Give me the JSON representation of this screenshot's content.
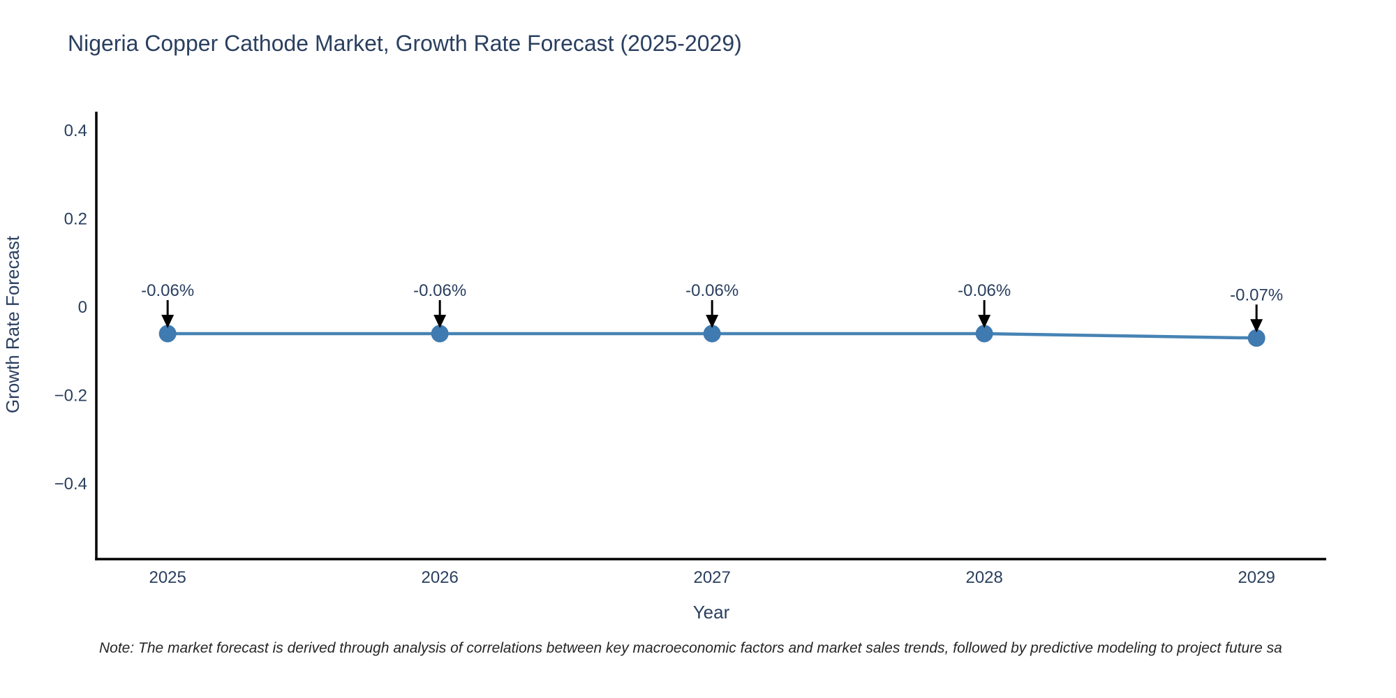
{
  "chart": {
    "title": "Nigeria Copper Cathode Market, Growth Rate Forecast (2025-2029)",
    "note": "Note: The market forecast is derived through analysis of correlations between key macroeconomic factors and market sales trends, followed by predictive modeling to project future sa",
    "colors": {
      "title_text": "#2a3f5f",
      "axis_title_text": "#2a3f5f",
      "tick_text": "#2a3f5f",
      "axis_line": "#000000",
      "series_line": "#4683b4",
      "marker_fill": "#3f7ab0",
      "annotation_text": "#2a3f5f",
      "annotation_arrow": "#000000",
      "note_text": "#262626",
      "background": "#ffffff"
    }
  },
  "chart_data": {
    "type": "line",
    "title": "Nigeria Copper Cathode Market, Growth Rate Forecast (2025-2029)",
    "xlabel": "Year",
    "ylabel": "Growth Rate Forecast",
    "x": [
      2025,
      2026,
      2027,
      2028,
      2029
    ],
    "y": [
      -0.06,
      -0.06,
      -0.06,
      -0.06,
      -0.07
    ],
    "point_labels": [
      "-0.06%",
      "-0.06%",
      "-0.06%",
      "-0.06%",
      "-0.07%"
    ],
    "x_tick_labels": [
      "2025",
      "2026",
      "2027",
      "2028",
      "2029"
    ],
    "y_ticks": [
      0.4,
      0.2,
      0,
      -0.2,
      -0.4
    ],
    "y_tick_labels": [
      "0.4",
      "0.2",
      "0",
      "−0.2",
      "−0.4"
    ],
    "xlim": [
      2024.738,
      2029.256
    ],
    "ylim": [
      -0.571,
      0.443
    ],
    "grid": false,
    "legend": false,
    "markers": true,
    "annotations": "value label with downward arrow above each data point"
  }
}
